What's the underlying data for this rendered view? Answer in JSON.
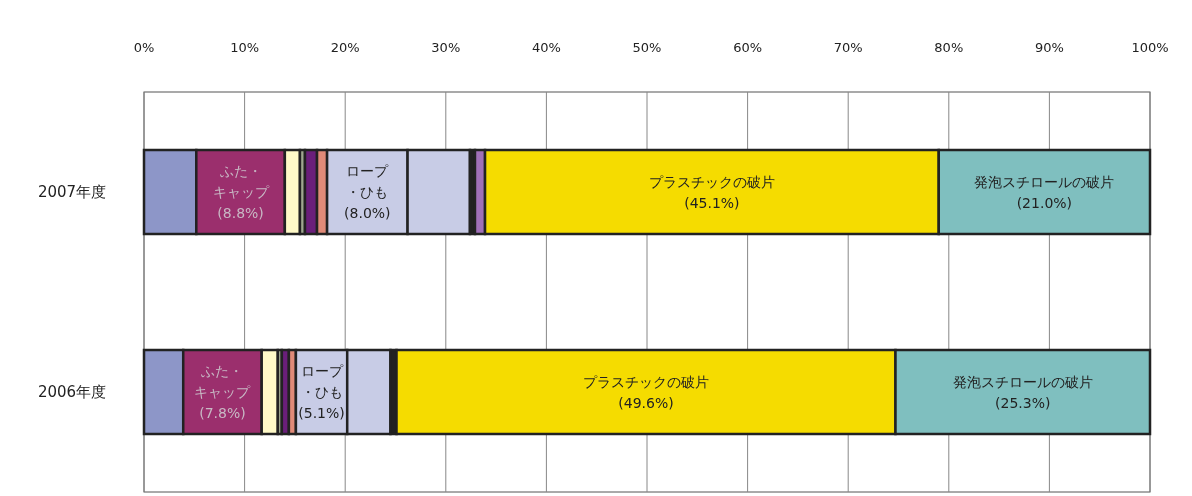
{
  "chart_data": {
    "type": "bar",
    "orientation": "horizontal",
    "stacked": true,
    "grid": "x",
    "categories": [
      "2007年度",
      "2006年度"
    ],
    "xlim": [
      0,
      100
    ],
    "xticks": [
      {
        "value": 0,
        "label": "0%"
      },
      {
        "value": 10,
        "label": "10%"
      },
      {
        "value": 20,
        "label": "20%"
      },
      {
        "value": 30,
        "label": "30%"
      },
      {
        "value": 40,
        "label": "40%"
      },
      {
        "value": 50,
        "label": "50%"
      },
      {
        "value": 60,
        "label": "60%"
      },
      {
        "value": 70,
        "label": "70%"
      },
      {
        "value": 80,
        "label": "80%"
      },
      {
        "value": 90,
        "label": "90%"
      },
      {
        "value": 100,
        "label": "100%"
      }
    ],
    "series": [
      {
        "color": "#8d96c8",
        "values": [
          5.2,
          3.9
        ]
      },
      {
        "name": "ふた・キャップ",
        "color": "#9b2f6d",
        "values": [
          8.8,
          7.8
        ],
        "value_labels": [
          "(8.8%)",
          "(7.8%)"
        ]
      },
      {
        "color": "#fffac8",
        "values": [
          1.5,
          1.6
        ]
      },
      {
        "color": "#a0a890",
        "values": [
          0.5,
          0.4
        ]
      },
      {
        "color": "#6a1f7a",
        "values": [
          1.2,
          0.7
        ]
      },
      {
        "color": "#e08a78",
        "values": [
          1.0,
          0.7
        ]
      },
      {
        "name": "ロープ・ひも",
        "color": "#c8cce6",
        "values": [
          8.0,
          5.1
        ],
        "value_labels": [
          "(8.0%)",
          "(5.1%)"
        ]
      },
      {
        "color": "#c8cce6",
        "values": [
          6.2,
          4.3
        ]
      },
      {
        "color": "#222222",
        "values": [
          0.5,
          0.6
        ]
      },
      {
        "color": "#a070b8",
        "values": [
          1.0,
          null
        ]
      },
      {
        "name": "プラスチックの破片",
        "color": "#f5dc00",
        "values": [
          45.1,
          49.6
        ],
        "value_labels": [
          "(45.1%)",
          "(49.6%)"
        ]
      },
      {
        "name": "発泡スチロールの破片",
        "color": "#7fbfbf",
        "values": [
          21.0,
          25.3
        ],
        "value_labels": [
          "(21.0%)",
          "(25.3%)"
        ]
      }
    ]
  }
}
